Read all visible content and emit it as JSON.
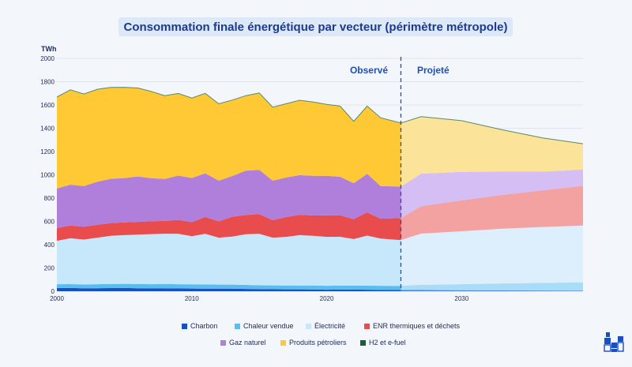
{
  "title": "Consommation finale énergétique par vecteur (périmètre métropole)",
  "chart_data": {
    "type": "area",
    "stacked": true,
    "ylabel": "TWh",
    "ylim": [
      0,
      2000
    ],
    "yticks": [
      0,
      200,
      400,
      600,
      800,
      1000,
      1200,
      1400,
      1600,
      1800,
      2000
    ],
    "xlim": [
      2000,
      2039
    ],
    "xticks": [
      2000,
      2010,
      2020,
      2030
    ],
    "divider_year": 2025.5,
    "period_labels": {
      "observed": "Observé",
      "projected": "Projeté"
    },
    "observed": {
      "years": [
        2000,
        2001,
        2002,
        2003,
        2004,
        2005,
        2006,
        2007,
        2008,
        2009,
        2010,
        2011,
        2012,
        2013,
        2014,
        2015,
        2016,
        2017,
        2018,
        2019,
        2020,
        2021,
        2022,
        2023,
        2024,
        2025.5
      ],
      "series": [
        {
          "key": "charbon",
          "name": "Charbon",
          "color": "#1a4fc4",
          "values": [
            28,
            28,
            25,
            26,
            27,
            28,
            26,
            25,
            26,
            24,
            23,
            22,
            22,
            22,
            20,
            18,
            17,
            16,
            16,
            15,
            13,
            14,
            14,
            13,
            12,
            11
          ]
        },
        {
          "key": "chaleur",
          "name": "Chaleur vendue",
          "color": "#5bbcf0",
          "values": [
            32,
            33,
            33,
            34,
            35,
            36,
            36,
            35,
            36,
            36,
            36,
            36,
            35,
            35,
            34,
            33,
            33,
            33,
            33,
            34,
            34,
            34,
            35,
            35,
            35,
            35
          ]
        },
        {
          "key": "elec",
          "name": "Électricité",
          "color": "#c7e8fb",
          "values": [
            373,
            394,
            386,
            400,
            414,
            418,
            424,
            431,
            432,
            433,
            414,
            435,
            403,
            413,
            436,
            442,
            410,
            418,
            433,
            427,
            420,
            420,
            399,
            430,
            406,
            393
          ]
        },
        {
          "key": "enr",
          "name": "ENR thermiques et déchets",
          "color": "#e84c4c",
          "values": [
            110,
            110,
            110,
            110,
            110,
            110,
            110,
            110,
            110,
            120,
            120,
            145,
            140,
            170,
            165,
            170,
            150,
            170,
            175,
            175,
            185,
            185,
            170,
            200,
            170,
            190
          ]
        },
        {
          "key": "gaz",
          "name": "Gaz naturel",
          "color": "#b07fdc",
          "values": [
            340,
            350,
            350,
            370,
            380,
            380,
            390,
            370,
            360,
            380,
            380,
            375,
            350,
            350,
            380,
            380,
            340,
            340,
            340,
            340,
            340,
            330,
            310,
            330,
            280,
            270
          ]
        },
        {
          "key": "petrole",
          "name": "Produits pétroliers",
          "color": "#ffc935",
          "values": [
            785,
            815,
            790,
            795,
            785,
            780,
            760,
            745,
            716,
            706,
            687,
            687,
            660,
            652,
            645,
            660,
            631,
            634,
            644,
            634,
            613,
            607,
            532,
            582,
            587,
            546
          ]
        },
        {
          "key": "h2",
          "name": "H2 et e-fuel",
          "color": "#1e5c38",
          "values": [
            0,
            0,
            0,
            0,
            0,
            0,
            0,
            0,
            0,
            0,
            0,
            0,
            0,
            0,
            0,
            0,
            0,
            0,
            0,
            0,
            0,
            0,
            0,
            0,
            0,
            0
          ]
        }
      ]
    },
    "projected": {
      "years": [
        2025.5,
        2027,
        2030,
        2033,
        2036,
        2039
      ],
      "series": [
        {
          "key": "charbon",
          "values": [
            11,
            10,
            8,
            7,
            6,
            5
          ]
        },
        {
          "key": "chaleur",
          "values": [
            35,
            45,
            52,
            60,
            66,
            70
          ]
        },
        {
          "key": "elec",
          "values": [
            393,
            440,
            455,
            470,
            480,
            490
          ]
        },
        {
          "key": "enr",
          "values": [
            190,
            235,
            265,
            290,
            315,
            340
          ]
        },
        {
          "key": "gaz",
          "values": [
            270,
            280,
            245,
            200,
            160,
            140
          ]
        },
        {
          "key": "petrole",
          "values": [
            546,
            490,
            440,
            360,
            290,
            220
          ]
        },
        {
          "key": "h2",
          "values": [
            0,
            0,
            0,
            0,
            0,
            2
          ]
        }
      ]
    },
    "projected_colors": {
      "charbon": "#4f7fdc",
      "chaleur": "#a9dcf7",
      "elec": "#ddeffc",
      "enr": "#f4a1a1",
      "gaz": "#d5bef4",
      "petrole": "#fbe399",
      "h2": "#1e5c38"
    }
  },
  "legend": {
    "row1": [
      "Charbon",
      "Chaleur vendue",
      "Électricité",
      "ENR thermiques et déchets"
    ],
    "row2": [
      "Gaz naturel",
      "Produits pétroliers",
      "H2 et e-fuel"
    ]
  },
  "logo_icon": "building-blocks-icon"
}
